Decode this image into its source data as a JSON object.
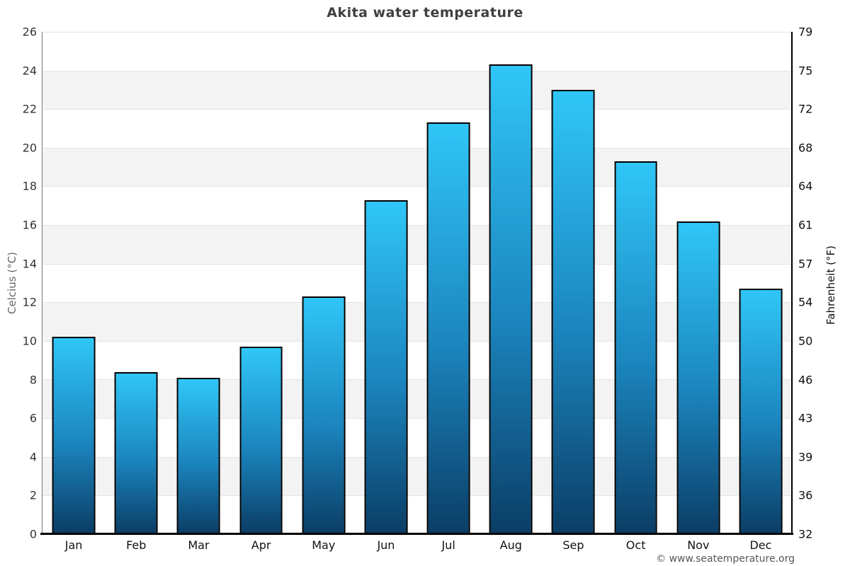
{
  "page": {
    "title": "Akita water temperature"
  },
  "chart_data": {
    "type": "bar",
    "title": "Akita water temperature",
    "categories": [
      "Jan",
      "Feb",
      "Mar",
      "Apr",
      "May",
      "Jun",
      "Jul",
      "Aug",
      "Sep",
      "Oct",
      "Nov",
      "Dec"
    ],
    "values": [
      10.2,
      8.4,
      8.1,
      9.7,
      12.3,
      17.3,
      21.3,
      24.3,
      23.0,
      19.3,
      16.2,
      12.7
    ],
    "ylabel_left": "Celcius (°C)",
    "ylabel_right": "Fahrenheit (°F)",
    "ylim": [
      0,
      26
    ],
    "ytick_step_celsius": 2,
    "yticks_celsius": [
      0,
      2,
      4,
      6,
      8,
      10,
      12,
      14,
      16,
      18,
      20,
      22,
      24,
      26
    ],
    "yticks_fahrenheit": [
      32,
      36,
      39,
      43,
      46,
      50,
      54,
      57,
      61,
      64,
      68,
      72,
      75,
      79
    ],
    "legend": "none",
    "grid": "alternating-horizontal-bands",
    "colors": {
      "bar_gradient_top": "#30c6f7",
      "bar_gradient_bottom": "#0b3e66",
      "bar_border": "#000000",
      "band_light": "#ffffff",
      "band_dark": "#f3f3f3",
      "gridline": "#e4e4e4",
      "axis_line": "#000000",
      "title_text": "#3f3f3f"
    }
  },
  "footer": {
    "copyright": "© www.seatemperature.org"
  }
}
